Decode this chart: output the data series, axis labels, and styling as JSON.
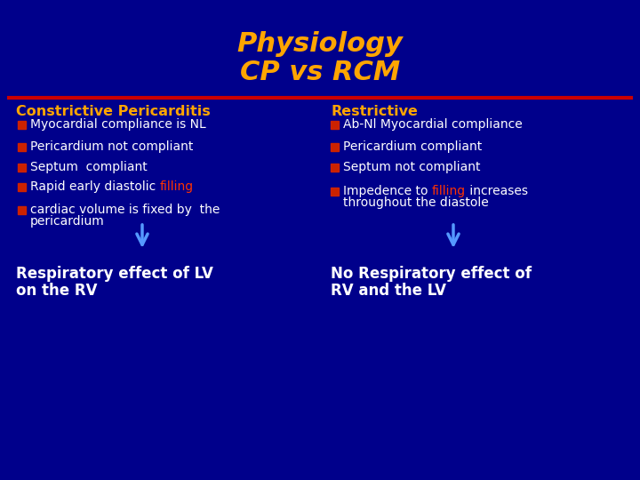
{
  "title_line1": "Physiology",
  "title_line2": "CP vs RCM",
  "title_color": "#FFA500",
  "bg_color": "#00008B",
  "separator_color": "#CC0000",
  "left_header": "Constrictive Pericarditis",
  "right_header": "Restrictive",
  "header_color": "#FFA500",
  "bullet_color": "#CC2200",
  "text_color": "#FFFFFF",
  "highlight_color": "#FF3300",
  "arrow_color": "#5599FF",
  "left_bullets": [
    [
      [
        "Myocardial compliance is NL"
      ],
      []
    ],
    [
      [
        "Pericardium not compliant"
      ],
      []
    ],
    [
      [
        "Septum  compliant"
      ],
      []
    ],
    [
      [
        "Rapid early diastolic ",
        "filling"
      ],
      [
        "filling"
      ]
    ],
    [
      [
        "cardiac volume is fixed by  the",
        "pericardium"
      ],
      []
    ]
  ],
  "right_bullets": [
    [
      [
        "Ab-Nl Myocardial compliance"
      ],
      []
    ],
    [
      [
        "Pericardium compliant"
      ],
      []
    ],
    [
      [
        "Septum not compliant"
      ],
      []
    ],
    [
      [
        "Impedence to ",
        "filling",
        " increases",
        "throughout the diastole"
      ],
      [
        "filling"
      ]
    ]
  ],
  "left_bottom_line1": "Respiratory effect of LV",
  "left_bottom_line2": "on the RV",
  "right_bottom_line1": "No Respiratory effect of",
  "right_bottom_line2": "RV and the LV",
  "bottom_text_color": "#FFFFFF"
}
